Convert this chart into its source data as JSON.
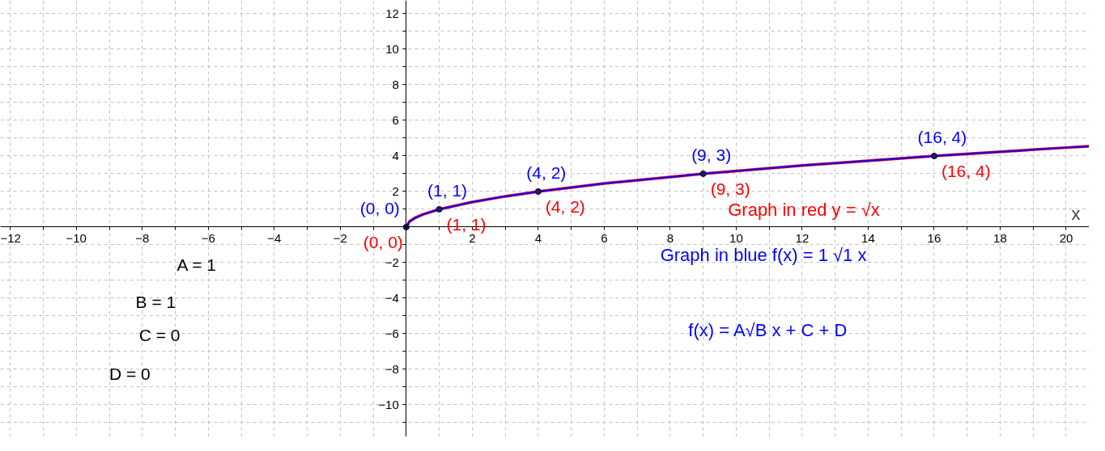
{
  "chart_data": {
    "type": "line",
    "xlabel": "x",
    "x": [
      0,
      0.1,
      0.25,
      0.5,
      1,
      2,
      3,
      4,
      6,
      9,
      12,
      16,
      20,
      20.7
    ],
    "series": [
      {
        "color": "#ff0000",
        "marker": "none",
        "values": [
          0,
          0.32,
          0.5,
          0.71,
          1,
          1.41,
          1.73,
          2,
          2.45,
          3,
          3.46,
          4,
          4.47,
          4.55
        ],
        "value_labels": [
          "(0, 0)",
          null,
          null,
          null,
          "(1, 1)",
          null,
          null,
          "(4, 2)",
          null,
          "(9, 3)",
          null,
          "(16, 4)",
          null,
          null
        ]
      },
      {
        "color": "#0000ff",
        "marker": "none",
        "values": [
          0,
          0.32,
          0.5,
          0.71,
          1,
          1.41,
          1.73,
          2,
          2.45,
          3,
          3.46,
          4,
          4.47,
          4.55
        ],
        "value_labels": [
          "(0, 0)",
          null,
          null,
          null,
          "(1, 1)",
          null,
          null,
          "(4, 2)",
          null,
          "(9, 3)",
          null,
          "(16, 4)",
          null,
          null
        ]
      },
      {
        "type": "scatter",
        "color": "#1a1a80",
        "x": [
          0,
          1,
          4,
          9,
          16
        ],
        "values": [
          0,
          1,
          2,
          3,
          4
        ]
      }
    ],
    "annotations": [
      "Graph in  red  y = √x",
      "Graph in blue  f(x) = 1 √1 x",
      "f(x) = A√B x + C + D",
      "A = 1",
      "B = 1",
      "C = 0",
      "D = 0"
    ],
    "xlim": [
      -12.3,
      20.7
    ],
    "ylim": [
      -11.8,
      12.75
    ],
    "xticks": [
      -12,
      {
        "value": -11,
        "label": null
      },
      -10,
      {
        "value": -9,
        "label": null
      },
      -8,
      {
        "value": -7,
        "label": null
      },
      -6,
      {
        "value": -5,
        "label": null
      },
      -4,
      {
        "value": -3,
        "label": null
      },
      -2,
      {
        "value": -1,
        "label": null
      },
      {
        "value": 0,
        "label": null
      },
      {
        "value": 1,
        "label": null
      },
      2,
      {
        "value": 3,
        "label": null
      },
      4,
      {
        "value": 5,
        "label": null
      },
      6,
      {
        "value": 7,
        "label": null
      },
      8,
      {
        "value": 9,
        "label": null
      },
      10,
      {
        "value": 11,
        "label": null
      },
      12,
      {
        "value": 13,
        "label": null
      },
      14,
      {
        "value": 15,
        "label": null
      },
      16,
      {
        "value": 17,
        "label": null
      },
      18,
      {
        "value": 19,
        "label": null
      },
      20
    ],
    "yticks": [
      {
        "value": -11,
        "label": null
      },
      -10,
      {
        "value": -9,
        "label": null
      },
      -8,
      {
        "value": -7,
        "label": null
      },
      -6,
      {
        "value": -5,
        "label": null
      },
      -4,
      {
        "value": -3,
        "label": null
      },
      -2,
      {
        "value": -1,
        "label": null
      },
      {
        "value": 0,
        "label": null
      },
      {
        "value": 1,
        "label": null
      },
      2,
      {
        "value": 3,
        "label": null
      },
      4,
      {
        "value": 5,
        "label": null
      },
      6,
      {
        "value": 7,
        "label": null
      },
      8,
      {
        "value": 9,
        "label": null
      },
      10,
      {
        "value": 11,
        "label": null
      },
      12
    ],
    "grid": true,
    "marker": "circle"
  }
}
